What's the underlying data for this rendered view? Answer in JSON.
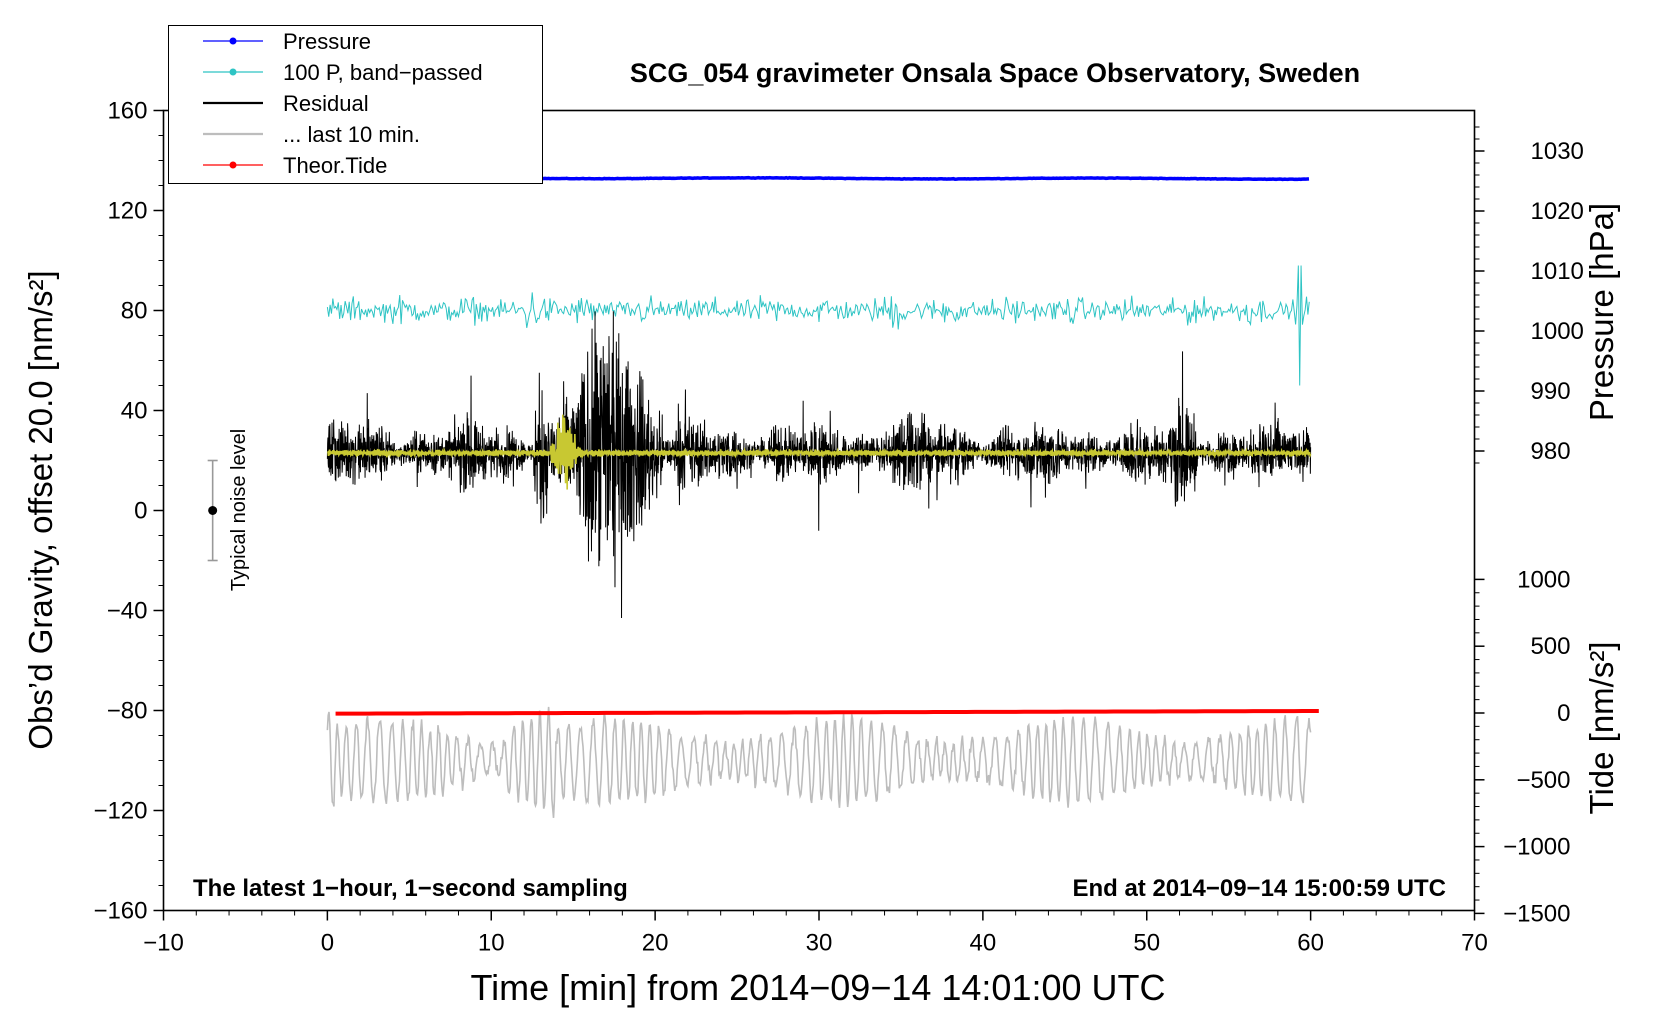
{
  "chart_data": {
    "type": "line",
    "title": "SCG_054 gravimeter Onsala Space Observatory, Sweden",
    "xlabel": "Time [min] from 2014−09−14 14:01:00 UTC",
    "ylabel_left": "Obs’d Gravity, offset 20.0 [nm/s²]",
    "ylabel_pressure": "Pressure [hPa]",
    "ylabel_tide": "Tide [nm/s²]",
    "xlim": [
      -10,
      70
    ],
    "ylim_left": [
      -160,
      160
    ],
    "x_ticks": [
      "−10",
      "0",
      "10",
      "20",
      "30",
      "40",
      "50",
      "60",
      "70"
    ],
    "y_left_ticks": [
      "160",
      "120",
      "80",
      "40",
      "0",
      "−40",
      "−80",
      "−120",
      "−160"
    ],
    "pressure_ticks": [
      "1030",
      "1020",
      "1010",
      "1000",
      "990",
      "980"
    ],
    "tide_ticks": [
      "1000",
      "500",
      "0",
      "−500",
      "−1000",
      "−1500"
    ],
    "annotation_left": "The latest 1−hour, 1−second sampling",
    "annotation_right": "End at 2014−09−14 15:00:59 UTC",
    "noise_label": "Typical noise level",
    "noise_level": {
      "x": -7,
      "center": 0,
      "half_range": 20
    },
    "legend": [
      {
        "label": "Pressure",
        "color": "#0000ff",
        "marker": true
      },
      {
        "label": "100 P, band−passed",
        "color": "#2ec4c4",
        "marker": true
      },
      {
        "label": "Residual",
        "color": "#000000",
        "marker": false
      },
      {
        "label": "... last 10 min.",
        "color": "#bdbdbd",
        "marker": false
      },
      {
        "label": "Theor.Tide",
        "color": "#ff0000",
        "marker": true
      }
    ],
    "series": [
      {
        "name": "Pressure",
        "color": "#0000ff",
        "axis": "pressure",
        "x_range": [
          0,
          60
        ],
        "level": 1025.5,
        "noise": 0.1
      },
      {
        "name": "100 P, band-passed",
        "color": "#2ec4c4",
        "axis": "left",
        "x_range": [
          0,
          60
        ],
        "level": 80,
        "typical_amplitude": 6,
        "peak_max": 99,
        "peak_min": 48
      },
      {
        "name": "Residual",
        "color": "#000000",
        "axis": "left",
        "x_range": [
          0,
          60
        ],
        "level": 23,
        "typical_amplitude": 15,
        "quake_window": [
          13,
          20
        ],
        "peak_max": 95,
        "peak_min": -43
      },
      {
        "name": "Residual smoothed",
        "color": "#c8c832",
        "axis": "left",
        "x_range": [
          0,
          60
        ],
        "level": 23,
        "typical_amplitude": 2,
        "burst_at": 14.5
      },
      {
        "name": "... last 10 min.",
        "color": "#bdbdbd",
        "axis": "left",
        "x_range": [
          0,
          60
        ],
        "level": -100,
        "typical_amplitude": 10,
        "peak_max": -74,
        "peak_min": -130
      },
      {
        "name": "Theor.Tide",
        "color": "#ff0000",
        "axis": "tide",
        "x_range": [
          0.5,
          60.5
        ],
        "start": -5,
        "end": 15
      }
    ]
  }
}
